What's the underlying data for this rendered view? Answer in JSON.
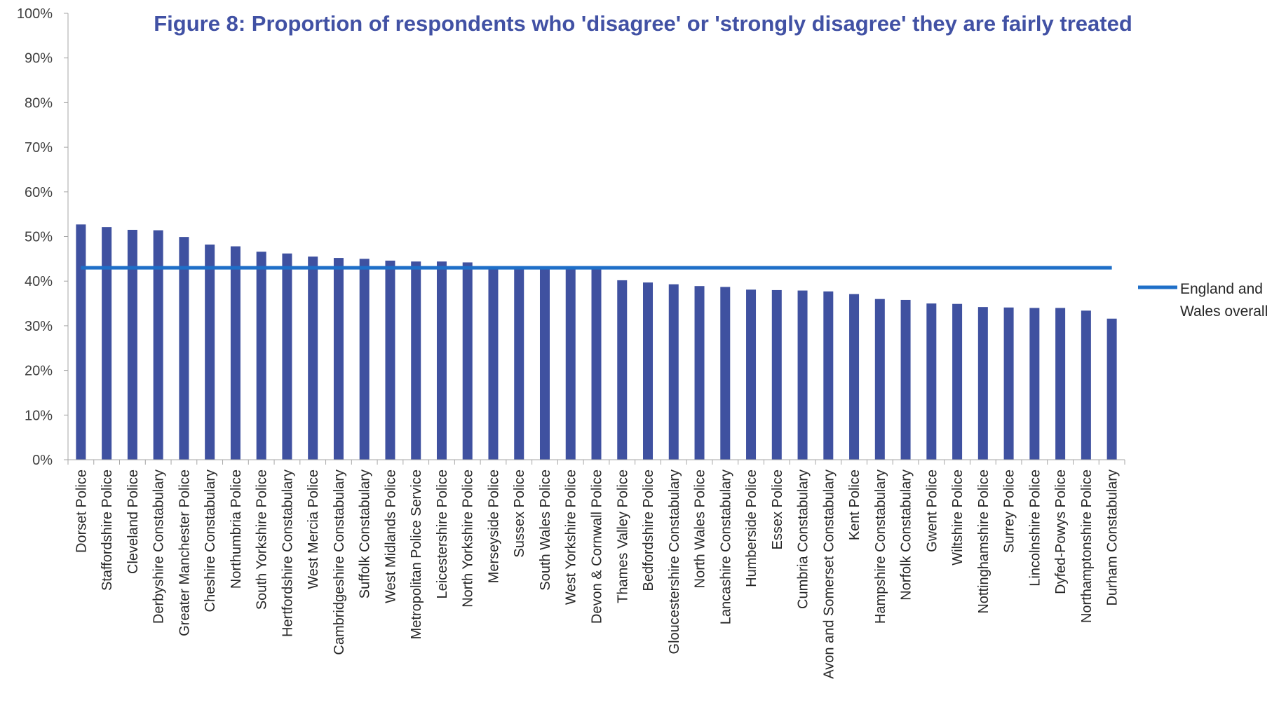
{
  "chart_data": {
    "type": "bar",
    "title": "Figure 8: Proportion of respondents who 'disagree' or 'strongly disagree' they are fairly treated",
    "xlabel": "",
    "ylabel": "",
    "ylim": [
      0,
      100
    ],
    "y_ticks": [
      "0%",
      "10%",
      "20%",
      "30%",
      "40%",
      "50%",
      "60%",
      "70%",
      "80%",
      "90%",
      "100%"
    ],
    "grid": false,
    "legend_position": "right",
    "categories": [
      "Dorset Police",
      "Staffordshire Police",
      "Cleveland Police",
      "Derbyshire Constabulary",
      "Greater Manchester Police",
      "Cheshire Constabulary",
      "Northumbria Police",
      "South Yorkshire Police",
      "Hertfordshire Constabulary",
      "West Mercia Police",
      "Cambridgeshire Constabulary",
      "Suffolk Constabulary",
      "West Midlands Police",
      "Metropolitan Police Service",
      "Leicestershire Police",
      "North Yorkshire Police",
      "Merseyside Police",
      "Sussex Police",
      "South Wales Police",
      "West Yorkshire Police",
      "Devon & Cornwall Police",
      "Thames Valley Police",
      "Bedfordshire Police",
      "Gloucestershire Constabulary",
      "North Wales Police",
      "Lancashire Constabulary",
      "Humberside Police",
      "Essex Police",
      "Cumbria Constabulary",
      "Avon and Somerset Constabulary",
      "Kent Police",
      "Hampshire Constabulary",
      "Norfolk Constabulary",
      "Gwent Police",
      "Wiltshire Police",
      "Nottinghamshire Police",
      "Surrey Police",
      "Lincolnshire Police",
      "Dyfed-Powys Police",
      "Northamptonshire Police",
      "Durham Constabulary"
    ],
    "series": [
      {
        "type": "bar",
        "values": [
          52.7,
          52.1,
          51.5,
          51.4,
          49.9,
          48.2,
          47.8,
          46.6,
          46.2,
          45.5,
          45.2,
          45.0,
          44.6,
          44.4,
          44.4,
          44.2,
          43.2,
          43.1,
          43.0,
          43.0,
          43.0,
          40.2,
          39.7,
          39.3,
          38.9,
          38.7,
          38.1,
          38.0,
          37.9,
          37.7,
          37.1,
          36.0,
          35.8,
          35.0,
          34.9,
          34.2,
          34.1,
          34.0,
          34.0,
          33.4,
          31.6
        ]
      },
      {
        "type": "line",
        "name": "England and Wales overall",
        "value": 43
      }
    ],
    "colors": {
      "bars": "#3F51A0",
      "line": "#1F6FC8",
      "title": "#4151A4",
      "axis": "#A6A6A6"
    }
  }
}
